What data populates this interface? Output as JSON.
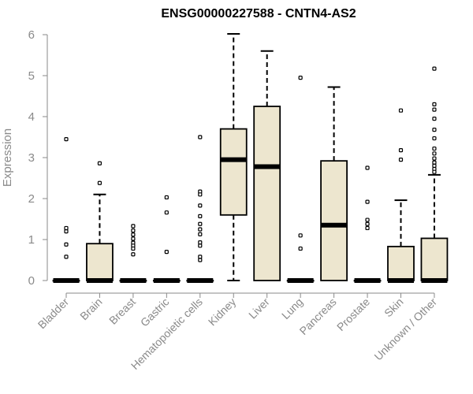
{
  "chart_data": {
    "type": "boxplot",
    "title": "ENSG00000227588 - CNTN4-AS2",
    "xlabel": "",
    "ylabel": "Expression",
    "ylim": [
      0,
      6
    ],
    "yticks": [
      0,
      1,
      2,
      3,
      4,
      5,
      6
    ],
    "grid": false,
    "box_color": "#ede6cf",
    "line_color": "#000000",
    "categories": [
      "Bladder",
      "Brain",
      "Breast",
      "Gastric",
      "Hematopoietic cells",
      "Kidney",
      "Liver",
      "Lung",
      "Pancreas",
      "Prostate",
      "Skin",
      "Unknown / Other"
    ],
    "boxes": [
      {
        "q1": 0,
        "median": 0,
        "q3": 0,
        "whisker_low": 0,
        "whisker_high": 0,
        "outliers": [
          3.45,
          1.28,
          1.2,
          0.88,
          0.58
        ]
      },
      {
        "q1": 0,
        "median": 0,
        "q3": 0.9,
        "whisker_low": 0,
        "whisker_high": 2.1,
        "outliers": [
          2.86,
          2.38
        ]
      },
      {
        "q1": 0,
        "median": 0,
        "q3": 0,
        "whisker_low": 0,
        "whisker_high": 0,
        "outliers": [
          1.33,
          1.22,
          1.12,
          1.02,
          0.92,
          0.85,
          0.78,
          0.64
        ]
      },
      {
        "q1": 0,
        "median": 0,
        "q3": 0,
        "whisker_low": 0,
        "whisker_high": 0,
        "outliers": [
          2.03,
          1.66,
          0.7
        ]
      },
      {
        "q1": 0,
        "median": 0,
        "q3": 0,
        "whisker_low": 0,
        "whisker_high": 0,
        "outliers": [
          3.5,
          2.17,
          2.1,
          1.83,
          1.57,
          1.38,
          1.25,
          1.13,
          0.93,
          0.85,
          0.58,
          0.5
        ]
      },
      {
        "q1": 1.6,
        "median": 2.95,
        "q3": 3.7,
        "whisker_low": 0,
        "whisker_high": 6.02,
        "outliers": []
      },
      {
        "q1": 0,
        "median": 2.78,
        "q3": 4.25,
        "whisker_low": 0,
        "whisker_high": 5.6,
        "outliers": []
      },
      {
        "q1": 0,
        "median": 0,
        "q3": 0,
        "whisker_low": 0,
        "whisker_high": 0,
        "outliers": [
          4.95,
          1.1,
          0.78
        ]
      },
      {
        "q1": 0,
        "median": 1.35,
        "q3": 2.92,
        "whisker_low": 0,
        "whisker_high": 4.72,
        "outliers": []
      },
      {
        "q1": 0,
        "median": 0,
        "q3": 0,
        "whisker_low": 0,
        "whisker_high": 0,
        "outliers": [
          2.75,
          1.92,
          1.48,
          1.38,
          1.28
        ]
      },
      {
        "q1": 0,
        "median": 0,
        "q3": 0.83,
        "whisker_low": 0,
        "whisker_high": 1.96,
        "outliers": [
          4.15,
          3.18,
          2.95
        ]
      },
      {
        "q1": 0,
        "median": 0,
        "q3": 1.03,
        "whisker_low": 0,
        "whisker_high": 2.58,
        "outliers": [
          5.17,
          4.3,
          4.17,
          3.95,
          3.68,
          3.47,
          3.22,
          3.1,
          2.98,
          2.88,
          2.8,
          2.72,
          2.65
        ]
      }
    ]
  }
}
